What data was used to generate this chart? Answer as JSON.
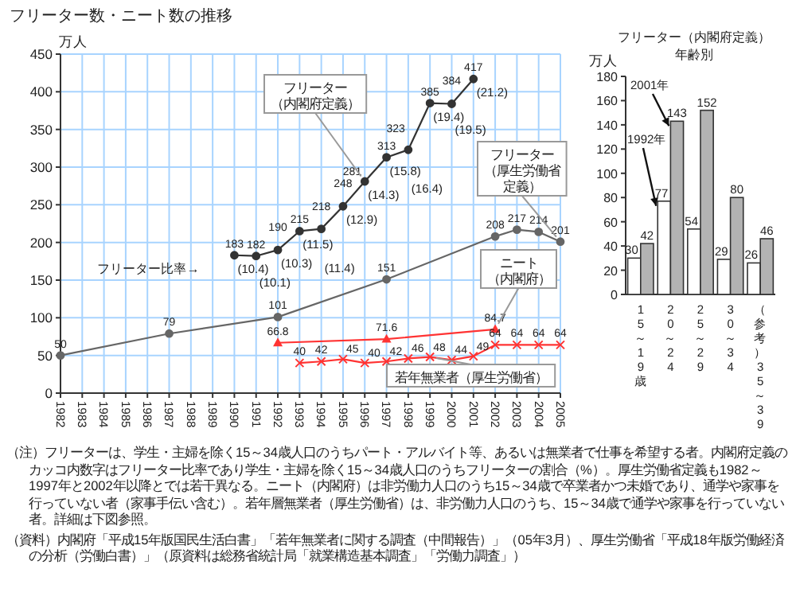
{
  "chart_data": [
    {
      "type": "line",
      "title": "フリーター数・ニート数の推移",
      "ylabel": "万人",
      "xlim": [
        1982,
        2005
      ],
      "xticks": [
        1982,
        1983,
        1984,
        1985,
        1986,
        1987,
        1988,
        1989,
        1990,
        1991,
        1992,
        1993,
        1994,
        1995,
        1996,
        1997,
        1998,
        1999,
        2000,
        2001,
        2002,
        2003,
        2004,
        2005
      ],
      "ylim": [
        0,
        450
      ],
      "yticks": [
        0,
        50,
        100,
        150,
        200,
        250,
        300,
        350,
        400,
        450
      ],
      "grid": true,
      "data_labels": true,
      "series": [
        {
          "name": "フリーター（内閣府定義）",
          "color": "#333333",
          "marker": "circle",
          "x": [
            1990,
            1991,
            1992,
            1993,
            1994,
            1995,
            1996,
            1997,
            1998,
            1999,
            2000,
            2001
          ],
          "values": [
            183,
            182,
            190,
            215,
            218,
            248,
            281,
            313,
            323,
            385,
            384,
            417
          ]
        },
        {
          "name": "フリーター（厚生労働省定義）",
          "color": "#666666",
          "marker": "circle",
          "x": [
            1982,
            1987,
            1992,
            1997,
            2002,
            2003,
            2004,
            2005
          ],
          "values": [
            50,
            79,
            101,
            151,
            208,
            217,
            214,
            201
          ]
        },
        {
          "name": "ニート（内閣府）",
          "color": "#ff3333",
          "marker": "triangle",
          "x": [
            1992,
            1997,
            2002
          ],
          "values": [
            66.8,
            71.6,
            84.7
          ]
        },
        {
          "name": "若年無業者（厚生労働省）",
          "color": "#ff3333",
          "marker": "cross",
          "x": [
            1993,
            1994,
            1995,
            1996,
            1997,
            1998,
            1999,
            2000,
            2001,
            2002,
            2003,
            2004,
            2005
          ],
          "values": [
            40,
            42,
            45,
            40,
            42,
            46,
            48,
            44,
            49,
            64,
            64,
            64,
            64
          ]
        }
      ],
      "annotations": [
        "フリーター比率→",
        "（注）フリーターは、学生・主婦を除く15～34歳人口のうちパート・アルバイト等、あるいは無業者で仕事を希望する者。内閣府定義のカッコ内数字はフリーター比率であり学生・主婦を除く15～34歳人口のうちフリーターの割合（%）。厚生労働省定義も1982～1997年と2002年以降とでは若干異なる。ニート（内閣府）は非労働力人口のうち15～34歳で卒業者かつ未婚であり、通学や家事を行っていない者（家事手伝い含む）。若年層無業者（厚生労働省）は、非労働力人口のうち、15～34歳で通学や家事を行っていない者。詳細は下図参照。",
        "（資料）内閣府「平成15年版国民生活白書」「若年無業者に関する調査（中間報告）」（05年3月）、厚生労働省「平成18年版労働経済の分析（労働白書）」（原資料は総務省統計局「就業構造基本調査」「労働力調査」）",
        {
          "text": "(10.4)",
          "x": 1990,
          "y": 183
        },
        {
          "text": "(10.1)",
          "x": 1991,
          "y": 182
        },
        {
          "text": "(10.3)",
          "x": 1992,
          "y": 190
        },
        {
          "text": "(11.5)",
          "x": 1993,
          "y": 215
        },
        {
          "text": "(11.4)",
          "x": 1994,
          "y": 218
        },
        {
          "text": "(12.9)",
          "x": 1995,
          "y": 248
        },
        {
          "text": "(14.3)",
          "x": 1996,
          "y": 281
        },
        {
          "text": "(15.8)",
          "x": 1997,
          "y": 313
        },
        {
          "text": "(16.4)",
          "x": 1998,
          "y": 323
        },
        {
          "text": "(19.4)",
          "x": 1999,
          "y": 385
        },
        {
          "text": "(19.5)",
          "x": 2000,
          "y": 384
        },
        {
          "text": "(21.2)",
          "x": 2001,
          "y": 417
        }
      ]
    },
    {
      "type": "bar",
      "title": "フリーター（内閣府定義）",
      "subtitle": "年齢別",
      "ylabel": "万人",
      "categories": [
        "15～19歳",
        "20～24",
        "25～29",
        "30～34",
        "（参考）35～39"
      ],
      "ylim": [
        0,
        180
      ],
      "yticks": [
        0,
        20,
        40,
        60,
        80,
        100,
        120,
        140,
        160,
        180
      ],
      "data_labels": true,
      "series": [
        {
          "name": "1992年",
          "color": "#ffffff",
          "values": [
            30,
            77,
            54,
            29,
            26
          ]
        },
        {
          "name": "2001年",
          "color": "#b3b3b3",
          "values": [
            42,
            143,
            152,
            80,
            46
          ]
        }
      ]
    }
  ]
}
